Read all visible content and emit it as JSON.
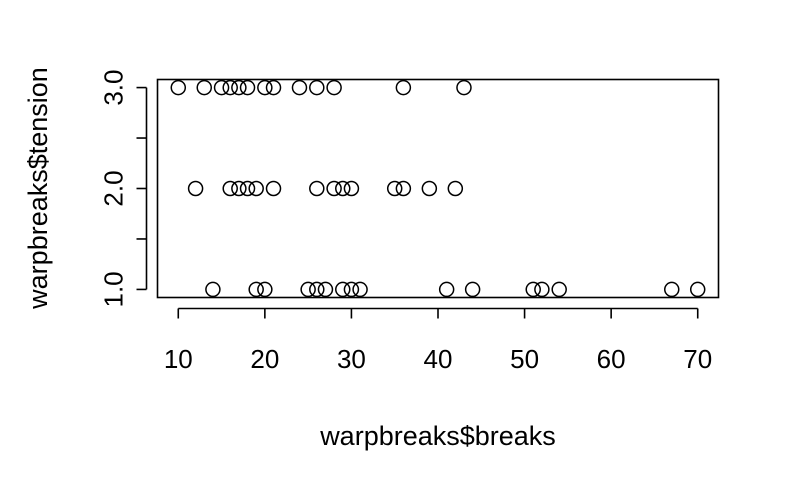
{
  "chart_data": {
    "type": "scatter",
    "xlabel": "warpbreaks$breaks",
    "ylabel": "warpbreaks$tension",
    "xlim": [
      7.6,
      72.4
    ],
    "ylim": [
      0.92,
      3.08
    ],
    "x_ticks": [
      10,
      20,
      30,
      40,
      50,
      60,
      70
    ],
    "x_tick_labels": [
      "10",
      "20",
      "30",
      "40",
      "50",
      "60",
      "70"
    ],
    "y_ticks": [
      1.0,
      1.5,
      2.0,
      2.5,
      3.0
    ],
    "y_tick_labels": [
      "1.0",
      "",
      "2.0",
      "",
      "3.0"
    ],
    "grid": false,
    "marker": "open-circle",
    "points": [
      {
        "x": 14,
        "y": 1
      },
      {
        "x": 19,
        "y": 1
      },
      {
        "x": 20,
        "y": 1
      },
      {
        "x": 25,
        "y": 1
      },
      {
        "x": 26,
        "y": 1
      },
      {
        "x": 27,
        "y": 1
      },
      {
        "x": 29,
        "y": 1
      },
      {
        "x": 30,
        "y": 1
      },
      {
        "x": 31,
        "y": 1
      },
      {
        "x": 41,
        "y": 1
      },
      {
        "x": 44,
        "y": 1
      },
      {
        "x": 51,
        "y": 1
      },
      {
        "x": 52,
        "y": 1
      },
      {
        "x": 54,
        "y": 1
      },
      {
        "x": 67,
        "y": 1
      },
      {
        "x": 70,
        "y": 1
      },
      {
        "x": 12,
        "y": 2
      },
      {
        "x": 16,
        "y": 2
      },
      {
        "x": 17,
        "y": 2
      },
      {
        "x": 18,
        "y": 2
      },
      {
        "x": 19,
        "y": 2
      },
      {
        "x": 21,
        "y": 2
      },
      {
        "x": 26,
        "y": 2
      },
      {
        "x": 28,
        "y": 2
      },
      {
        "x": 29,
        "y": 2
      },
      {
        "x": 30,
        "y": 2
      },
      {
        "x": 35,
        "y": 2
      },
      {
        "x": 36,
        "y": 2
      },
      {
        "x": 39,
        "y": 2
      },
      {
        "x": 42,
        "y": 2
      },
      {
        "x": 10,
        "y": 3
      },
      {
        "x": 13,
        "y": 3
      },
      {
        "x": 15,
        "y": 3
      },
      {
        "x": 16,
        "y": 3
      },
      {
        "x": 17,
        "y": 3
      },
      {
        "x": 18,
        "y": 3
      },
      {
        "x": 20,
        "y": 3
      },
      {
        "x": 21,
        "y": 3
      },
      {
        "x": 24,
        "y": 3
      },
      {
        "x": 26,
        "y": 3
      },
      {
        "x": 28,
        "y": 3
      },
      {
        "x": 36,
        "y": 3
      },
      {
        "x": 43,
        "y": 3
      }
    ]
  }
}
